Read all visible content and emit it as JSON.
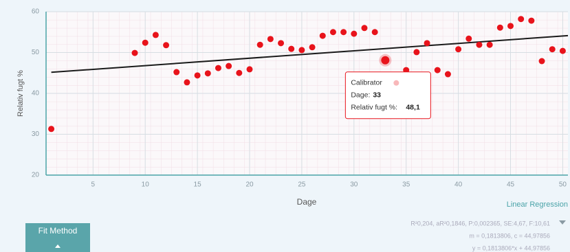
{
  "chart_data": {
    "type": "scatter",
    "x_label": "Dage",
    "y_label": "Relativ fugt %",
    "x": [
      1,
      9,
      10,
      11,
      12,
      13,
      14,
      15,
      16,
      17,
      18,
      19,
      20,
      21,
      22,
      23,
      24,
      25,
      26,
      27,
      28,
      29,
      30,
      31,
      32,
      33,
      35,
      36,
      37,
      38,
      39,
      40,
      41,
      42,
      43,
      44,
      45,
      46,
      47,
      48,
      49,
      50
    ],
    "series": [
      {
        "name": "Calibrator",
        "color": "#e8131b",
        "values": [
          31.3,
          49.9,
          52.4,
          54.3,
          51.8,
          45.2,
          42.7,
          44.4,
          44.9,
          46.2,
          46.7,
          45.0,
          45.9,
          51.9,
          53.3,
          52.3,
          50.9,
          50.6,
          51.3,
          54.1,
          55.0,
          55.0,
          54.6,
          56.0,
          55.0,
          48.1,
          45.7,
          50.1,
          52.3,
          45.7,
          44.7,
          50.8,
          53.4,
          51.9,
          51.9,
          56.1,
          56.5,
          58.2,
          57.8,
          47.9,
          50.8,
          50.4
        ],
        "value_labels": [
          null,
          null,
          null,
          null,
          null,
          null,
          null,
          null,
          null,
          null,
          null,
          null,
          null,
          null,
          null,
          null,
          null,
          null,
          null,
          null,
          null,
          null,
          null,
          null,
          null,
          "48,1",
          null,
          null,
          null,
          null,
          null,
          null,
          null,
          null,
          null,
          null,
          null,
          null,
          null,
          null,
          null,
          null
        ]
      }
    ],
    "fit": {
      "name": "Linear Regression",
      "color": "#1a1a1a",
      "x": [
        1,
        50.5
      ],
      "values": [
        45.16,
        54.14
      ]
    },
    "xlim": [
      0.5,
      50.5
    ],
    "xticks": [
      5,
      10,
      15,
      20,
      25,
      30,
      35,
      40,
      45,
      50
    ],
    "ylim": [
      20,
      60
    ],
    "yticks": [
      20,
      30,
      40,
      50,
      60
    ],
    "grid": true,
    "stats": [
      "R²0,204, aR²0,1846, P:0,002365, SE:4,67, F:10,61",
      "m = 0,1813806, c = 44,97856",
      "y = 0,1813806*x + 44,97856"
    ],
    "tooltip": {
      "x_label": "Dage:",
      "x_value": "33",
      "y_label": "Relativ fugt %:"
    },
    "button": "Fit Method"
  }
}
